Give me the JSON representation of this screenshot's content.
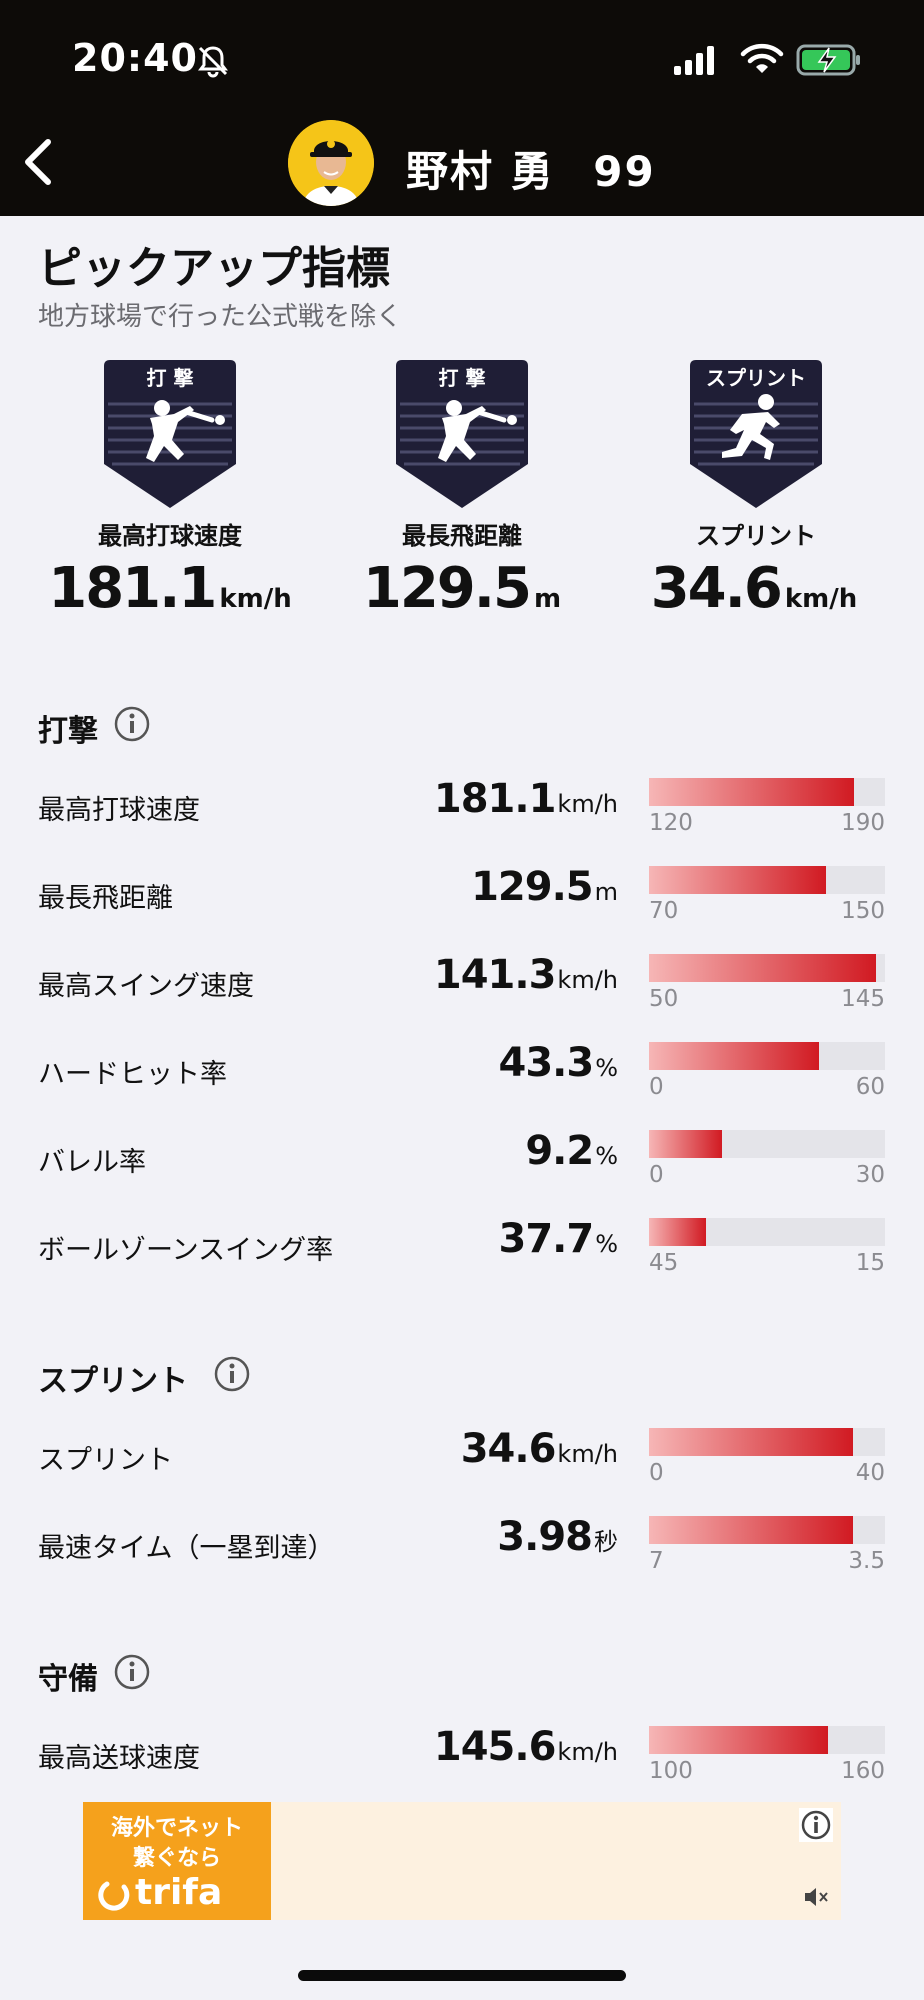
{
  "status_bar": {
    "time": "20:40"
  },
  "header": {
    "player_name": "野村 勇",
    "number": "99"
  },
  "pickup": {
    "title": "ピックアップ指標",
    "subtitle": "地方球場で行った公式戦を除く",
    "badges": [
      {
        "badge_text": "打 撃",
        "label": "最高打球速度",
        "value": "181.1",
        "unit": "km/h",
        "icon": "batter-icon"
      },
      {
        "badge_text": "打 撃",
        "label": "最長飛距離",
        "value": "129.5",
        "unit": "m",
        "icon": "batter-icon"
      },
      {
        "badge_text": "スプリント",
        "label": "スプリント",
        "value": "34.6",
        "unit": "km/h",
        "icon": "runner-icon"
      }
    ]
  },
  "sections": {
    "batting": {
      "title": "打撃",
      "rows": [
        {
          "label": "最高打球速度",
          "value": "181.1",
          "unit": "km/h",
          "min": "120",
          "max": "190",
          "fill": 0.87
        },
        {
          "label": "最長飛距離",
          "value": "129.5",
          "unit": "m",
          "min": "70",
          "max": "150",
          "fill": 0.75
        },
        {
          "label": "最高スイング速度",
          "value": "141.3",
          "unit": "km/h",
          "min": "50",
          "max": "145",
          "fill": 0.96
        },
        {
          "label": "ハードヒット率",
          "value": "43.3",
          "unit": "%",
          "min": "0",
          "max": "60",
          "fill": 0.72
        },
        {
          "label": "バレル率",
          "value": "9.2",
          "unit": "%",
          "min": "0",
          "max": "30",
          "fill": 0.31
        },
        {
          "label": "ボールゾーンスイング率",
          "value": "37.7",
          "unit": "%",
          "min": "45",
          "max": "15",
          "fill": 0.24
        }
      ]
    },
    "sprint": {
      "title": "スプリント",
      "rows": [
        {
          "label": "スプリント",
          "value": "34.6",
          "unit": "km/h",
          "min": "0",
          "max": "40",
          "fill": 0.865
        },
        {
          "label": "最速タイム（一塁到達）",
          "value": "3.98",
          "unit": "秒",
          "min": "7",
          "max": "3.5",
          "fill": 0.865
        }
      ]
    },
    "defense": {
      "title": "守備",
      "rows": [
        {
          "label": "最高送球速度",
          "value": "145.6",
          "unit": "km/h",
          "min": "100",
          "max": "160",
          "fill": 0.76
        }
      ]
    }
  },
  "ad": {
    "line1": "海外でネット",
    "line2": "繋ぐなら",
    "brand": "trifa"
  },
  "colors": {
    "header_bg": "#0d0b08",
    "bar_fill_end": "#d11a22",
    "bar_fill_start": "#f6b6b6",
    "badge_bg": "#1f1e36",
    "ad_bg": "#f5a11c"
  }
}
